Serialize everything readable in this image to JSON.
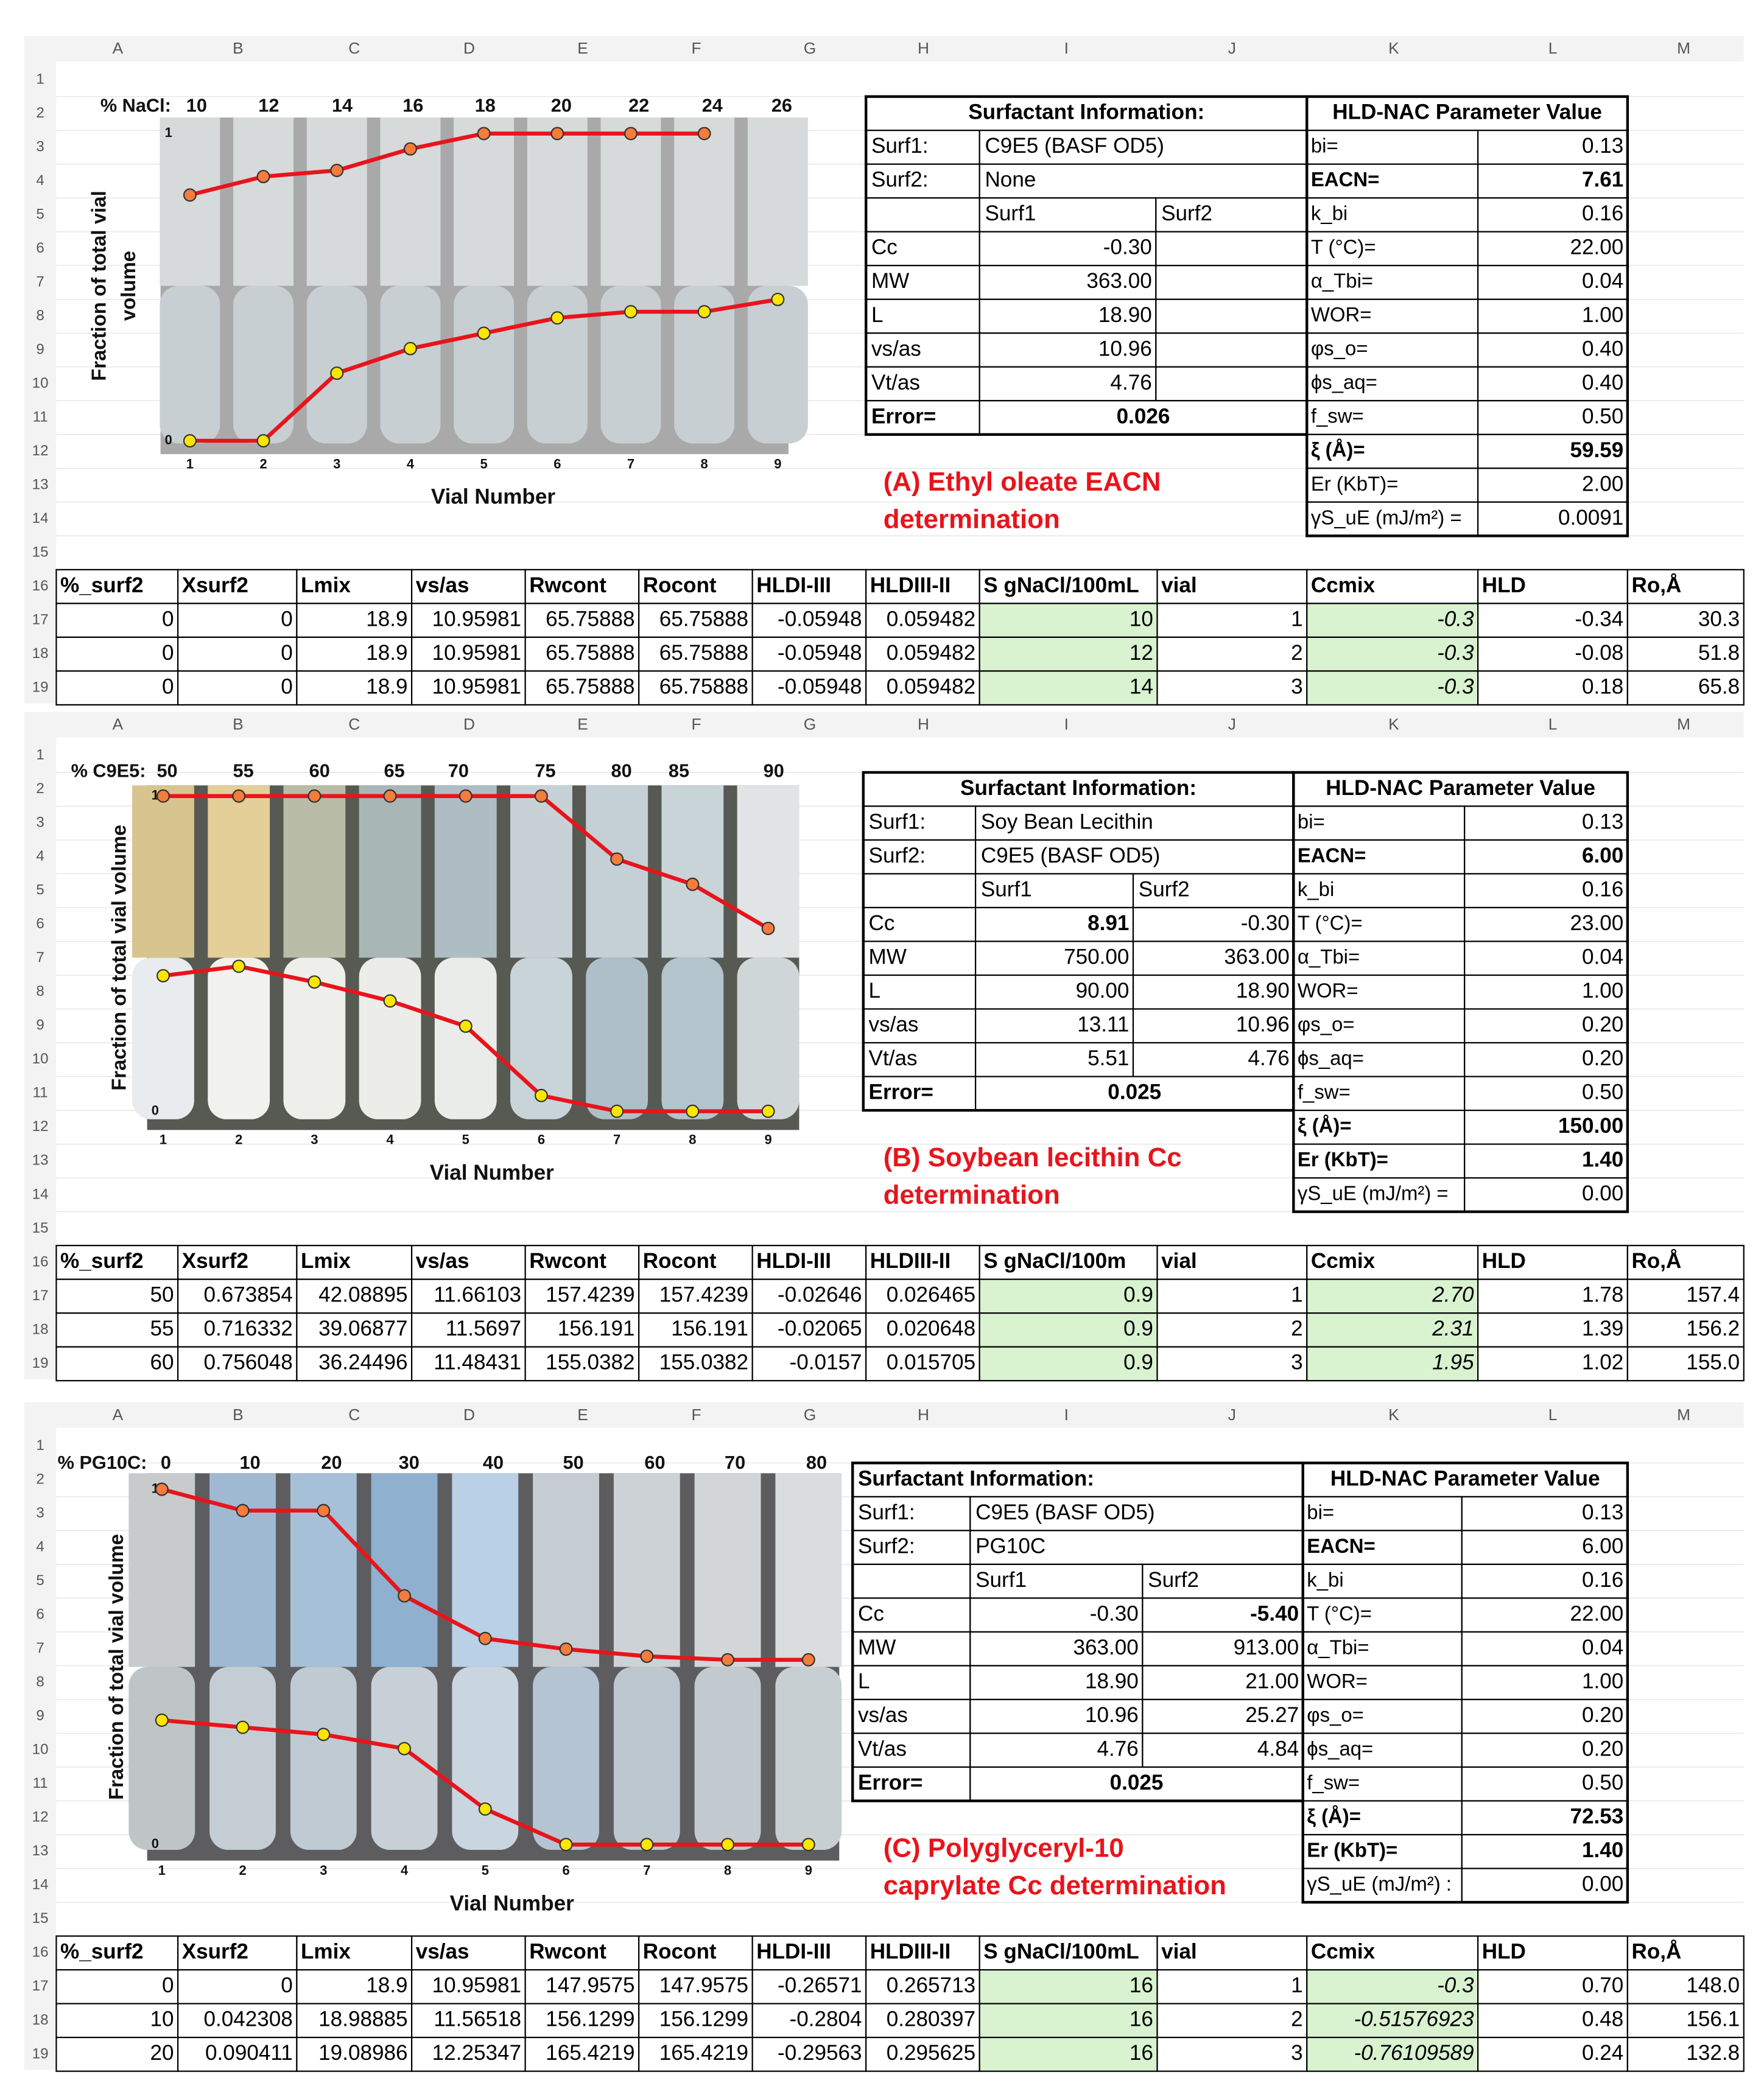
{
  "columns": [
    "A",
    "B",
    "C",
    "D",
    "E",
    "F",
    "G",
    "H",
    "I",
    "J",
    "K",
    "L",
    "M"
  ],
  "rows": [
    1,
    2,
    3,
    4,
    5,
    6,
    7,
    8,
    9,
    10,
    11,
    12,
    13,
    14,
    15,
    16,
    17,
    18,
    19
  ],
  "panels": [
    {
      "chart": {
        "concentration_label": "% NaCl:",
        "concentrations": [
          10,
          12,
          14,
          16,
          18,
          20,
          22,
          24,
          26
        ],
        "vials": [
          1,
          2,
          3,
          4,
          5,
          6,
          7,
          8,
          9
        ],
        "yticks": [
          0,
          1
        ],
        "y_label_lines": [
          "Fraction of total vial",
          "volume"
        ],
        "x_label": "Vial Number",
        "line_color": "#e8141c",
        "series": [
          {
            "color": "#f47c3c",
            "values": [
              0.8,
              0.86,
              0.88,
              0.95,
              1.0,
              1.0,
              1.0,
              1.0,
              null
            ]
          },
          {
            "color": "#ffe600",
            "values": [
              0,
              0,
              0.22,
              0.3,
              0.35,
              0.4,
              0.42,
              0.42,
              0.46
            ]
          }
        ]
      },
      "info": {
        "header": "Surfactant Information:",
        "rows": [
          {
            "label": "Surf1:",
            "value": "C9E5 (BASF OD5)"
          },
          {
            "label": "Surf2:",
            "value": "None"
          },
          {
            "surf1": "Surf1",
            "surf2": "Surf2"
          },
          {
            "label": "Cc",
            "surf1": "-0.30"
          },
          {
            "label": "MW",
            "surf1": "363.00"
          },
          {
            "label": "L",
            "surf1": "18.90"
          },
          {
            "label": "vs/as",
            "surf1": "10.96"
          },
          {
            "label": "Vt/as",
            "surf1": "4.76"
          },
          {
            "label": "Error=",
            "total": "0.026"
          }
        ]
      },
      "params": {
        "header": "HLD-NAC Parameter Value",
        "rows": [
          {
            "label": "bi=",
            "value": "0.13"
          },
          {
            "label": "EACN=",
            "value": "7.61",
            "bold": true
          },
          {
            "label": "k_bi",
            "value": "0.16"
          },
          {
            "label": "T (°C)=",
            "value": "22.00"
          },
          {
            "label": "α_Tbi=",
            "value": "0.04"
          },
          {
            "label": "WOR=",
            "value": "1.00"
          },
          {
            "label": "φs_o=",
            "value": "0.40"
          },
          {
            "label": "ϕs_aq=",
            "value": "0.40"
          },
          {
            "label": "f_sw=",
            "value": "0.50"
          },
          {
            "label": "ξ (Å)=",
            "value": "59.59",
            "bold": true
          },
          {
            "label": "Er (KbT)=",
            "value": "2.00"
          },
          {
            "label": "γS_uE (mJ/m²) =",
            "value": "0.0091"
          }
        ]
      },
      "caption_lines": [
        "(A) Ethyl oleate EACN",
        "determination"
      ],
      "table": {
        "header": [
          "%_surf2",
          "Xsurf2",
          "Lmix",
          "vs/as",
          "Rwcont",
          "Rocont",
          "HLDI-III",
          "HLDIII-II",
          "S gNaCl/100mL",
          "vial",
          "Ccmix",
          "HLD",
          "Ro,Å"
        ],
        "rows": [
          [
            "0",
            "0",
            "18.9",
            "10.95981",
            "65.75888",
            "65.75888",
            "-0.05948",
            "0.059482",
            "10",
            "1",
            "-0.3",
            "-0.34",
            "30.3"
          ],
          [
            "0",
            "0",
            "18.9",
            "10.95981",
            "65.75888",
            "65.75888",
            "-0.05948",
            "0.059482",
            "12",
            "2",
            "-0.3",
            "-0.08",
            "51.8"
          ],
          [
            "0",
            "0",
            "18.9",
            "10.95981",
            "65.75888",
            "65.75888",
            "-0.05948",
            "0.059482",
            "14",
            "3",
            "-0.3",
            "0.18",
            "65.8"
          ]
        ]
      }
    },
    {
      "chart": {
        "concentration_label": "% C9E5:",
        "concentrations": [
          50,
          55,
          60,
          65,
          70,
          75,
          80,
          85,
          90
        ],
        "vials": [
          1,
          2,
          3,
          4,
          5,
          6,
          7,
          8,
          9
        ],
        "yticks": [
          0,
          1
        ],
        "y_label_lines": [
          "Fraction of total vial volume"
        ],
        "x_label": "Vial Number",
        "line_color": "#e8141c",
        "series": [
          {
            "color": "#f47c3c",
            "values": [
              1.0,
              1.0,
              1.0,
              1.0,
              1.0,
              1.0,
              0.8,
              0.72,
              0.58
            ]
          },
          {
            "color": "#ffe600",
            "values": [
              0.43,
              0.46,
              0.41,
              0.35,
              0.27,
              0.05,
              0,
              0,
              0
            ]
          }
        ]
      },
      "info": {
        "header": "Surfactant Information:",
        "rows": [
          {
            "label": "Surf1:",
            "value": "Soy Bean Lecithin"
          },
          {
            "label": "Surf2:",
            "value": "C9E5 (BASF OD5)"
          },
          {
            "surf1": "Surf1",
            "surf2": "Surf2"
          },
          {
            "label": "Cc",
            "surf1": "8.91",
            "surf2": "-0.30",
            "bold": "surf1"
          },
          {
            "label": "MW",
            "surf1": "750.00",
            "surf2": "363.00"
          },
          {
            "label": "L",
            "surf1": "90.00",
            "surf2": "18.90"
          },
          {
            "label": "vs/as",
            "surf1": "13.11",
            "surf2": "10.96"
          },
          {
            "label": "Vt/as",
            "surf1": "5.51",
            "surf2": "4.76"
          },
          {
            "label": "Error=",
            "total": "0.025"
          }
        ]
      },
      "params": {
        "header": "HLD-NAC Parameter Value",
        "rows": [
          {
            "label": "bi=",
            "value": "0.13"
          },
          {
            "label": "EACN=",
            "value": "6.00",
            "bold": true
          },
          {
            "label": "k_bi",
            "value": "0.16"
          },
          {
            "label": "T (°C)=",
            "value": "23.00"
          },
          {
            "label": "α_Tbi=",
            "value": "0.04"
          },
          {
            "label": "WOR=",
            "value": "1.00"
          },
          {
            "label": "φs_o=",
            "value": "0.20"
          },
          {
            "label": "ϕs_aq=",
            "value": "0.20"
          },
          {
            "label": "f_sw=",
            "value": "0.50"
          },
          {
            "label": "ξ (Å)=",
            "value": "150.00",
            "bold": true
          },
          {
            "label": "Er (KbT)=",
            "value": "1.40",
            "bold": true
          },
          {
            "label": "γS_uE (mJ/m²) =",
            "value": "0.00"
          }
        ]
      },
      "caption_lines": [
        "(B) Soybean lecithin Cc",
        "determination"
      ],
      "table": {
        "header": [
          "%_surf2",
          "Xsurf2",
          "Lmix",
          "vs/as",
          "Rwcont",
          "Rocont",
          "HLDI-III",
          "HLDIII-II",
          "S gNaCl/100m",
          "vial",
          "Ccmix",
          "HLD",
          "Ro,Å"
        ],
        "rows": [
          [
            "50",
            "0.673854",
            "42.08895",
            "11.66103",
            "157.4239",
            "157.4239",
            "-0.02646",
            "0.026465",
            "0.9",
            "1",
            "2.70",
            "1.78",
            "157.4"
          ],
          [
            "55",
            "0.716332",
            "39.06877",
            "11.5697",
            "156.191",
            "156.191",
            "-0.02065",
            "0.020648",
            "0.9",
            "2",
            "2.31",
            "1.39",
            "156.2"
          ],
          [
            "60",
            "0.756048",
            "36.24496",
            "11.48431",
            "155.0382",
            "155.0382",
            "-0.0157",
            "0.015705",
            "0.9",
            "3",
            "1.95",
            "1.02",
            "155.0"
          ]
        ]
      }
    },
    {
      "chart": {
        "concentration_label": "% PG10C:",
        "concentrations": [
          0,
          10,
          20,
          30,
          40,
          50,
          60,
          70,
          80
        ],
        "vials": [
          1,
          2,
          3,
          4,
          5,
          6,
          7,
          8,
          9
        ],
        "yticks": [
          0,
          1
        ],
        "y_label_lines": [
          "Fraction of total vial volume"
        ],
        "x_label": "Vial Number",
        "line_color": "#e8141c",
        "series": [
          {
            "color": "#f47c3c",
            "values": [
              1.0,
              0.94,
              0.94,
              0.7,
              0.58,
              0.55,
              0.53,
              0.52,
              0.52
            ]
          },
          {
            "color": "#ffe600",
            "values": [
              0.35,
              0.33,
              0.31,
              0.27,
              0.1,
              0,
              0,
              0,
              0
            ]
          }
        ]
      },
      "info": {
        "header": "Surfactant Information:",
        "header_align": "left",
        "rows": [
          {
            "label": "Surf1:",
            "value": "C9E5 (BASF OD5)"
          },
          {
            "label": "Surf2:",
            "value": "PG10C"
          },
          {
            "surf1": "Surf1",
            "surf2": "Surf2"
          },
          {
            "label": "Cc",
            "surf1": "-0.30",
            "surf2": "-5.40",
            "bold": "surf2"
          },
          {
            "label": "MW",
            "surf1": "363.00",
            "surf2": "913.00"
          },
          {
            "label": "L",
            "surf1": "18.90",
            "surf2": "21.00"
          },
          {
            "label": "vs/as",
            "surf1": "10.96",
            "surf2": "25.27"
          },
          {
            "label": "Vt/as",
            "surf1": "4.76",
            "surf2": "4.84"
          },
          {
            "label": "Error=",
            "total": "0.025"
          }
        ]
      },
      "params": {
        "header": "HLD-NAC Parameter Value",
        "rows": [
          {
            "label": "bi=",
            "value": "0.13"
          },
          {
            "label": "EACN=",
            "value": "6.00"
          },
          {
            "label": "k_bi",
            "value": "0.16"
          },
          {
            "label": "T (°C)=",
            "value": "22.00"
          },
          {
            "label": "α_Tbi=",
            "value": "0.04"
          },
          {
            "label": "WOR=",
            "value": "1.00"
          },
          {
            "label": "φs_o=",
            "value": "0.20"
          },
          {
            "label": "ϕs_aq=",
            "value": "0.20"
          },
          {
            "label": "f_sw=",
            "value": "0.50"
          },
          {
            "label": "ξ (Å)=",
            "value": "72.53",
            "bold": true
          },
          {
            "label": "Er (KbT)=",
            "value": "1.40",
            "bold": true
          },
          {
            "label": "γS_uE (mJ/m²) :",
            "value": "0.00"
          }
        ]
      },
      "caption_lines": [
        "(C) Polyglyceryl-10",
        "caprylate Cc determination"
      ],
      "table": {
        "header": [
          "%_surf2",
          "Xsurf2",
          "Lmix",
          "vs/as",
          "Rwcont",
          "Rocont",
          "HLDI-III",
          "HLDIII-II",
          "S gNaCl/100mL",
          "vial",
          "Ccmix",
          "HLD",
          "Ro,Å"
        ],
        "rows": [
          [
            "0",
            "0",
            "18.9",
            "10.95981",
            "147.9575",
            "147.9575",
            "-0.26571",
            "0.265713",
            "16",
            "1",
            "-0.3",
            "0.70",
            "148.0"
          ],
          [
            "10",
            "0.042308",
            "18.98885",
            "11.56518",
            "156.1299",
            "156.1299",
            "-0.2804",
            "0.280397",
            "16",
            "2",
            "-0.51576923",
            "0.48",
            "156.1"
          ],
          [
            "20",
            "0.090411",
            "19.08986",
            "12.25347",
            "165.4219",
            "165.4219",
            "-0.29563",
            "0.295625",
            "16",
            "3",
            "-0.76109589",
            "0.24",
            "132.8"
          ]
        ]
      }
    }
  ]
}
